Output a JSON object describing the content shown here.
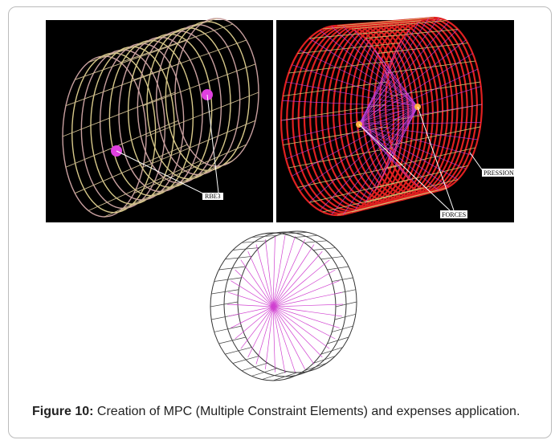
{
  "panel_labels": {
    "rbe3": "RBE3",
    "pression": "PRESSION",
    "forces": "FORCES"
  },
  "caption": {
    "label": "Figure 10:",
    "text": "Creation of MPC (Multiple Constraint Elements) and expenses application."
  }
}
